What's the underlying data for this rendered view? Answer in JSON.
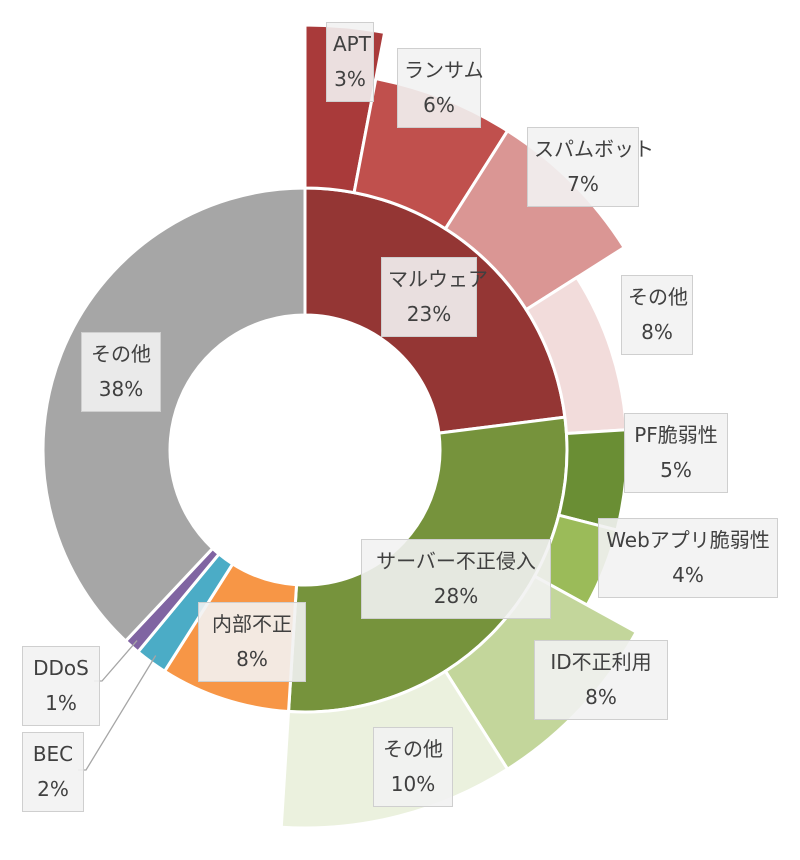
{
  "chart_data": {
    "type": "pie",
    "inner": [
      {
        "label": "マルウェア",
        "value": "23%",
        "pct": 23,
        "color": "#943634"
      },
      {
        "label": "サーバー不正侵入",
        "value": "28%",
        "pct": 28,
        "color": "#76933c"
      },
      {
        "label": "内部不正",
        "value": "8%",
        "pct": 8,
        "color": "#f79646"
      },
      {
        "label": "BEC",
        "value": "2%",
        "pct": 2,
        "color": "#4bacc6"
      },
      {
        "label": "DDoS",
        "value": "1%",
        "pct": 1,
        "color": "#8064a2"
      },
      {
        "label": "その他",
        "value": "38%",
        "pct": 38,
        "color": "#a6a6a6"
      }
    ],
    "outer": [
      {
        "label": "APT",
        "value": "3%",
        "pct": 3,
        "color": "#a93a3a"
      },
      {
        "label": "ランサム",
        "value": "6%",
        "pct": 6,
        "color": "#c0504d"
      },
      {
        "label": "スパムボット",
        "value": "7%",
        "pct": 7,
        "color": "#da9694"
      },
      {
        "label": "その他",
        "value": "8%",
        "pct": 8,
        "color": "#f2dcdb"
      },
      {
        "label": "PF脆弱性",
        "value": "5%",
        "pct": 5,
        "color": "#6a8e34"
      },
      {
        "label": "Webアプリ脆弱性",
        "value": "4%",
        "pct": 4,
        "color": "#9bbb59"
      },
      {
        "label": "ID不正利用",
        "value": "8%",
        "pct": 8,
        "color": "#c3d69b"
      },
      {
        "label": "その他",
        "value": "10%",
        "pct": 10,
        "color": "#ebf1de"
      }
    ]
  }
}
